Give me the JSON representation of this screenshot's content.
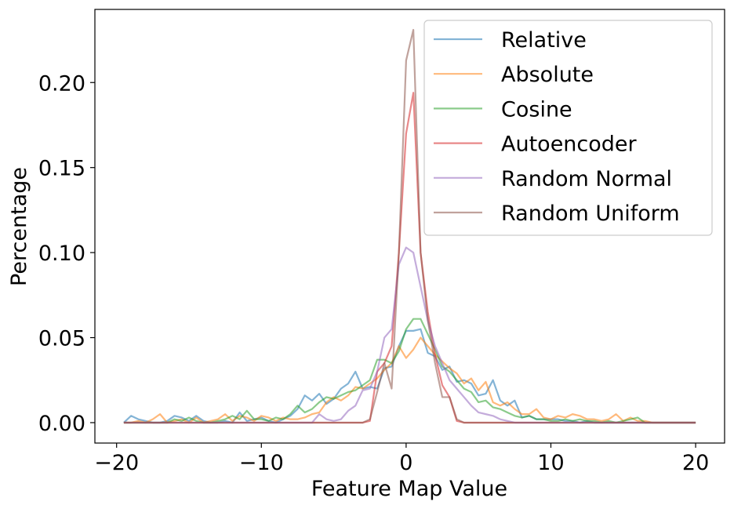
{
  "chart_data": {
    "type": "line",
    "title": "",
    "xlabel": "Feature Map Value",
    "ylabel": "Percentage",
    "xlim": [
      -21.5,
      22
    ],
    "ylim": [
      -0.012,
      0.243
    ],
    "x_ticks": [
      -20,
      -10,
      0,
      10,
      20
    ],
    "x_tick_labels": [
      "−20",
      "−10",
      "0",
      "10",
      "20"
    ],
    "y_ticks": [
      0.0,
      0.05,
      0.1,
      0.15,
      0.2
    ],
    "y_tick_labels": [
      "0.00",
      "0.05",
      "0.10",
      "0.15",
      "0.20"
    ],
    "grid": false,
    "legend_position": "upper-right",
    "series": [
      {
        "name": "Relative",
        "color": "#1f77b4",
        "x": [
          -19.5,
          -19,
          -18.5,
          -18,
          -17.5,
          -17,
          -16.5,
          -16,
          -15.5,
          -15,
          -14.5,
          -14,
          -13.5,
          -13,
          -12.5,
          -12,
          -11.5,
          -11,
          -10.5,
          -10,
          -9.5,
          -9,
          -8.5,
          -8,
          -7.5,
          -7,
          -6.5,
          -6,
          -5.5,
          -5,
          -4.5,
          -4,
          -3.5,
          -3,
          -2.5,
          -2,
          -1.5,
          -1,
          -0.5,
          0,
          0.5,
          1,
          1.5,
          2,
          2.5,
          3,
          3.5,
          4,
          4.5,
          5,
          5.5,
          6,
          6.5,
          7,
          7.5,
          8,
          8.5,
          9,
          9.5,
          10,
          10.5,
          11,
          11.5,
          12,
          12.5,
          13,
          13.5,
          14,
          14.5,
          15,
          15.5,
          16,
          16.5,
          17,
          17.5,
          18,
          18.5,
          19,
          19.5,
          20
        ],
        "values": [
          0,
          0.004,
          0.002,
          0.001,
          0,
          0,
          0.001,
          0.004,
          0.003,
          0.001,
          0.004,
          0.001,
          0,
          0,
          0.001,
          0,
          0.006,
          0.001,
          0.002,
          0.003,
          0.001,
          0,
          0.002,
          0.004,
          0.008,
          0.016,
          0.013,
          0.017,
          0.011,
          0.014,
          0.02,
          0.023,
          0.03,
          0.02,
          0.021,
          0.02,
          0.032,
          0.033,
          0.045,
          0.054,
          0.054,
          0.055,
          0.041,
          0.039,
          0.031,
          0.033,
          0.024,
          0.025,
          0.023,
          0.016,
          0.017,
          0.025,
          0.013,
          0.01,
          0.013,
          0.003,
          0.004,
          0.002,
          0.002,
          0.002,
          0.002,
          0.001,
          0.001,
          0,
          0.001,
          0,
          0,
          0,
          0,
          0,
          0,
          0,
          0,
          0,
          0,
          0,
          0,
          0,
          0,
          0
        ]
      },
      {
        "name": "Absolute",
        "color": "#ff7f0e",
        "x": [
          -19.5,
          -19,
          -18.5,
          -18,
          -17.5,
          -17,
          -16.5,
          -16,
          -15.5,
          -15,
          -14.5,
          -14,
          -13.5,
          -13,
          -12.5,
          -12,
          -11.5,
          -11,
          -10.5,
          -10,
          -9.5,
          -9,
          -8.5,
          -8,
          -7.5,
          -7,
          -6.5,
          -6,
          -5.5,
          -5,
          -4.5,
          -4,
          -3.5,
          -3,
          -2.5,
          -2,
          -1.5,
          -1,
          -0.5,
          0,
          0.5,
          1,
          1.5,
          2,
          2.5,
          3,
          3.5,
          4,
          4.5,
          5,
          5.5,
          6,
          6.5,
          7,
          7.5,
          8,
          8.5,
          9,
          9.5,
          10,
          10.5,
          11,
          11.5,
          12,
          12.5,
          13,
          13.5,
          14,
          14.5,
          15,
          15.5,
          16,
          16.5,
          17,
          17.5,
          18,
          18.5,
          19,
          19.5,
          20
        ],
        "values": [
          0,
          0,
          0.001,
          0,
          0.002,
          0.005,
          0,
          0.001,
          0.002,
          0,
          0.003,
          0,
          0.001,
          0.002,
          0.005,
          0.001,
          0.004,
          0.003,
          0.001,
          0.004,
          0.003,
          0.001,
          0.003,
          0.002,
          0.002,
          0.003,
          0.005,
          0.006,
          0.012,
          0.015,
          0.013,
          0.016,
          0.021,
          0.02,
          0.023,
          0.026,
          0.031,
          0.035,
          0.045,
          0.038,
          0.043,
          0.05,
          0.045,
          0.04,
          0.036,
          0.032,
          0.029,
          0.023,
          0.026,
          0.019,
          0.024,
          0.012,
          0.01,
          0.012,
          0.008,
          0.005,
          0.005,
          0.008,
          0.003,
          0.002,
          0.004,
          0.003,
          0.005,
          0.004,
          0.002,
          0.002,
          0.001,
          0.002,
          0.005,
          0.001,
          0.003,
          0.001,
          0.001,
          0,
          0,
          0,
          0,
          0,
          0,
          0
        ]
      },
      {
        "name": "Cosine",
        "color": "#2ca02c",
        "x": [
          -19.5,
          -19,
          -18.5,
          -18,
          -17.5,
          -17,
          -16.5,
          -16,
          -15.5,
          -15,
          -14.5,
          -14,
          -13.5,
          -13,
          -12.5,
          -12,
          -11.5,
          -11,
          -10.5,
          -10,
          -9.5,
          -9,
          -8.5,
          -8,
          -7.5,
          -7,
          -6.5,
          -6,
          -5.5,
          -5,
          -4.5,
          -4,
          -3.5,
          -3,
          -2.5,
          -2,
          -1.5,
          -1,
          -0.5,
          0,
          0.5,
          1,
          1.5,
          2,
          2.5,
          3,
          3.5,
          4,
          4.5,
          5,
          5.5,
          6,
          6.5,
          7,
          7.5,
          8,
          8.5,
          9,
          9.5,
          10,
          10.5,
          11,
          11.5,
          12,
          12.5,
          13,
          13.5,
          14,
          14.5,
          15,
          15.5,
          16,
          16.5,
          17,
          17.5,
          18,
          18.5,
          19,
          19.5,
          20
        ],
        "values": [
          0,
          0,
          0,
          0,
          0,
          0,
          0,
          0.002,
          0.001,
          0.003,
          0.001,
          0,
          0,
          0.001,
          0.002,
          0.004,
          0.002,
          0.007,
          0.002,
          0.002,
          0.001,
          0.003,
          0.002,
          0.005,
          0.01,
          0.006,
          0.008,
          0.012,
          0.015,
          0.014,
          0.016,
          0.018,
          0.019,
          0.022,
          0.025,
          0.037,
          0.037,
          0.035,
          0.042,
          0.055,
          0.061,
          0.061,
          0.052,
          0.043,
          0.033,
          0.03,
          0.025,
          0.02,
          0.018,
          0.012,
          0.013,
          0.009,
          0.008,
          0.006,
          0.004,
          0.003,
          0.004,
          0.002,
          0.002,
          0.001,
          0.001,
          0.002,
          0.001,
          0.002,
          0.001,
          0.001,
          0,
          0.001,
          0,
          0.001,
          0.002,
          0.003,
          0,
          0,
          0,
          0,
          0,
          0,
          0,
          0
        ]
      },
      {
        "name": "Autoencoder",
        "color": "#d62728",
        "x": [
          -19.5,
          -19,
          -18.5,
          -18,
          -17.5,
          -17,
          -16.5,
          -16,
          -15.5,
          -15,
          -14.5,
          -14,
          -13.5,
          -13,
          -12.5,
          -12,
          -11.5,
          -11,
          -10.5,
          -10,
          -9.5,
          -9,
          -8.5,
          -8,
          -7.5,
          -7,
          -6.5,
          -6,
          -5.5,
          -5,
          -4.5,
          -4,
          -3.5,
          -3,
          -2.5,
          -2,
          -1.5,
          -1,
          -0.5,
          0,
          0.5,
          1,
          1.5,
          2,
          2.5,
          3,
          3.5,
          4,
          4.5,
          5,
          5.5,
          6,
          6.5,
          7,
          7.5,
          8,
          8.5,
          9,
          9.5,
          10,
          10.5,
          11,
          11.5,
          12,
          12.5,
          13,
          13.5,
          14,
          14.5,
          15,
          15.5,
          16,
          16.5,
          17,
          17.5,
          18,
          18.5,
          19,
          19.5,
          20
        ],
        "values": [
          0,
          0,
          0,
          0,
          0,
          0,
          0,
          0,
          0,
          0,
          0,
          0,
          0,
          0,
          0,
          0,
          0,
          0,
          0,
          0,
          0,
          0,
          0,
          0,
          0,
          0,
          0,
          0,
          0,
          0,
          0,
          0,
          0,
          0,
          0.001,
          0.03,
          0.035,
          0.045,
          0.1,
          0.17,
          0.194,
          0.1,
          0.065,
          0.04,
          0.022,
          0.015,
          0.001,
          0,
          0,
          0,
          0,
          0,
          0,
          0,
          0,
          0,
          0,
          0,
          0,
          0,
          0,
          0,
          0,
          0,
          0,
          0,
          0,
          0,
          0,
          0,
          0,
          0,
          0,
          0,
          0,
          0,
          0,
          0,
          0,
          0
        ]
      },
      {
        "name": "Random Normal",
        "color": "#9467bd",
        "x": [
          -19.5,
          -19,
          -18.5,
          -18,
          -17.5,
          -17,
          -16.5,
          -16,
          -15.5,
          -15,
          -14.5,
          -14,
          -13.5,
          -13,
          -12.5,
          -12,
          -11.5,
          -11,
          -10.5,
          -10,
          -9.5,
          -9,
          -8.5,
          -8,
          -7.5,
          -7,
          -6.5,
          -6,
          -5.5,
          -5,
          -4.5,
          -4,
          -3.5,
          -3,
          -2.5,
          -2,
          -1.5,
          -1,
          -0.5,
          0,
          0.5,
          1,
          1.5,
          2,
          2.5,
          3,
          3.5,
          4,
          4.5,
          5,
          5.5,
          6,
          6.5,
          7,
          7.5,
          8,
          8.5,
          9,
          9.5,
          10,
          10.5,
          11,
          11.5,
          12,
          12.5,
          13,
          13.5,
          14,
          14.5,
          15,
          15.5,
          16,
          16.5,
          17,
          17.5,
          18,
          18.5,
          19,
          19.5,
          20
        ],
        "values": [
          0,
          0,
          0,
          0,
          0,
          0,
          0,
          0,
          0,
          0,
          0,
          0,
          0,
          0,
          0,
          0,
          0,
          0,
          0,
          0,
          0,
          0,
          0,
          0,
          0,
          0,
          0,
          0.005,
          0.002,
          0.001,
          0.002,
          0.007,
          0.01,
          0.019,
          0.02,
          0.03,
          0.05,
          0.055,
          0.093,
          0.103,
          0.1,
          0.08,
          0.06,
          0.045,
          0.035,
          0.025,
          0.02,
          0.015,
          0.01,
          0.006,
          0.005,
          0.004,
          0.002,
          0.001,
          0,
          0,
          0,
          0,
          0,
          0,
          0,
          0,
          0,
          0,
          0,
          0,
          0,
          0,
          0,
          0,
          0,
          0,
          0,
          0,
          0,
          0,
          0,
          0,
          0,
          0
        ]
      },
      {
        "name": "Random Uniform",
        "color": "#8c564b",
        "x": [
          -19.5,
          -19,
          -18.5,
          -18,
          -17.5,
          -17,
          -16.5,
          -16,
          -15.5,
          -15,
          -14.5,
          -14,
          -13.5,
          -13,
          -12.5,
          -12,
          -11.5,
          -11,
          -10.5,
          -10,
          -9.5,
          -9,
          -8.5,
          -8,
          -7.5,
          -7,
          -6.5,
          -6,
          -5.5,
          -5,
          -4.5,
          -4,
          -3.5,
          -3,
          -2.5,
          -2,
          -1.5,
          -1,
          -0.5,
          0,
          0.5,
          1,
          1.5,
          2,
          2.5,
          3,
          3.5,
          4,
          4.5,
          5,
          5.5,
          6,
          6.5,
          7,
          7.5,
          8,
          8.5,
          9,
          9.5,
          10,
          10.5,
          11,
          11.5,
          12,
          12.5,
          13,
          13.5,
          14,
          14.5,
          15,
          15.5,
          16,
          16.5,
          17,
          17.5,
          18,
          18.5,
          19,
          19.5,
          20
        ],
        "values": [
          0,
          0,
          0,
          0,
          0,
          0,
          0,
          0,
          0,
          0,
          0,
          0,
          0,
          0,
          0,
          0,
          0,
          0,
          0,
          0,
          0,
          0,
          0,
          0,
          0,
          0,
          0,
          0,
          0,
          0,
          0,
          0,
          0,
          0,
          0.002,
          0.018,
          0.035,
          0.02,
          0.1,
          0.213,
          0.231,
          0.1,
          0.06,
          0.035,
          0.015,
          0.015,
          0.002,
          0,
          0,
          0,
          0,
          0,
          0,
          0,
          0,
          0,
          0,
          0,
          0,
          0,
          0,
          0,
          0,
          0,
          0,
          0,
          0,
          0,
          0,
          0,
          0,
          0,
          0,
          0,
          0,
          0,
          0,
          0,
          0,
          0
        ]
      }
    ]
  }
}
